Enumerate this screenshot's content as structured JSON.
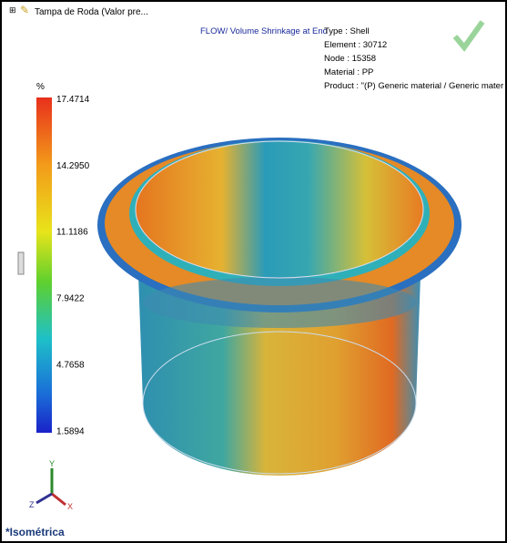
{
  "tree_item": "Tampa de Roda  (Valor pre...",
  "plot_title": "FLOW/ Volume Shrinkage at End",
  "info": [
    "Type : Shell",
    "Element : 30712",
    "Node : 15358",
    "Material : PP",
    "Product :  \"(P)  Generic material / Generic mater"
  ],
  "legend": {
    "unit": "%",
    "labels": [
      "17.4714",
      "14.2950",
      "11.1186",
      "7.9422",
      "4.7658",
      "1.5894"
    ]
  },
  "triad": {
    "x": "X",
    "y": "Y",
    "z": "Z"
  },
  "view_name": "*Isométrica"
}
